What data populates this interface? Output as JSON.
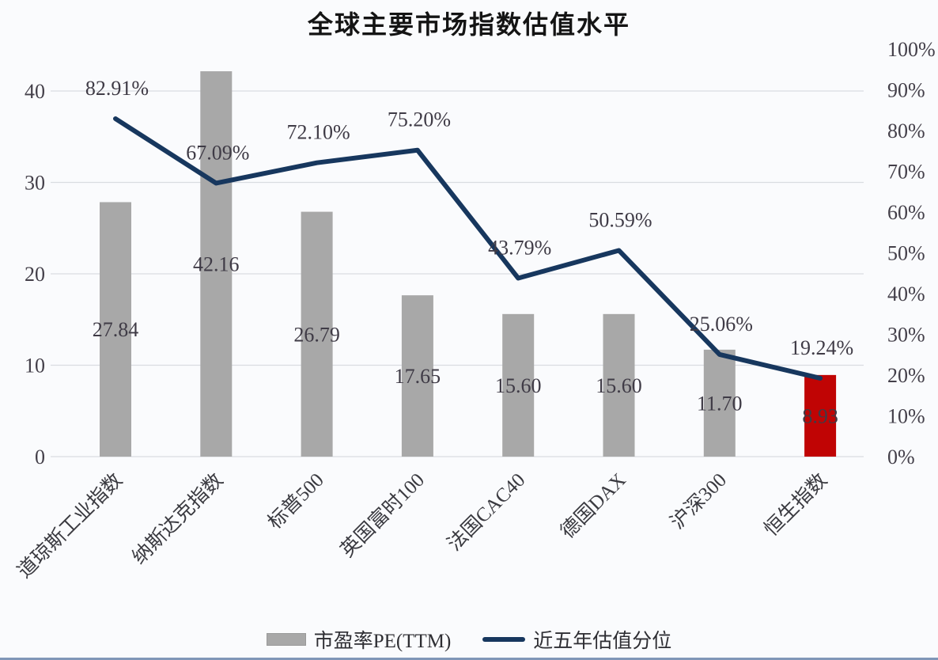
{
  "title": "全球主要市场指数估值水平",
  "legend": {
    "pe_label": "市盈率PE(TTM)",
    "percentile_label": "近五年估值分位"
  },
  "colors": {
    "bar": "#a8a8a8",
    "bar_highlight": "#c00404",
    "line": "#17375e",
    "grid": "#d9dce1",
    "axis_text": "#44404a",
    "data_label_text": "#3f3b46",
    "background": "#fafbfd",
    "bottom_border": "#8097b8"
  },
  "chart_data": {
    "type": "bar",
    "subtype": "combo-bar-line-dual-axis",
    "title": "全球主要市场指数估值水平",
    "categories": [
      "道琼斯工业指数",
      "纳斯达克指数",
      "标普500",
      "英国富时100",
      "法国CAC40",
      "德国DAX",
      "沪深300",
      "恒生指数"
    ],
    "series": [
      {
        "name": "市盈率PE(TTM)",
        "type": "bar",
        "axis": "left",
        "values": [
          27.84,
          42.16,
          26.79,
          17.65,
          15.6,
          15.6,
          11.7,
          8.93
        ],
        "labels": [
          "27.84",
          "42.16",
          "26.79",
          "17.65",
          "15.60",
          "15.60",
          "11.70",
          "8.93"
        ],
        "highlight_index": 7
      },
      {
        "name": "近五年估值分位",
        "type": "line",
        "axis": "right",
        "values": [
          82.91,
          67.09,
          72.1,
          75.2,
          43.79,
          50.59,
          25.06,
          19.24
        ],
        "labels": [
          "82.91%",
          "67.09%",
          "72.10%",
          "75.20%",
          "43.79%",
          "50.59%",
          "25.06%",
          "19.24%"
        ]
      }
    ],
    "left_axis": {
      "min": 0,
      "max": 40,
      "step": 10,
      "ticks": [
        "0",
        "10",
        "20",
        "30",
        "40"
      ]
    },
    "right_axis": {
      "min": 0,
      "max": 100,
      "step": 10,
      "ticks": [
        "0%",
        "10%",
        "20%",
        "30%",
        "40%",
        "50%",
        "60%",
        "70%",
        "80%",
        "90%",
        "100%"
      ]
    },
    "grid": "horizontal",
    "legend_position": "bottom"
  }
}
